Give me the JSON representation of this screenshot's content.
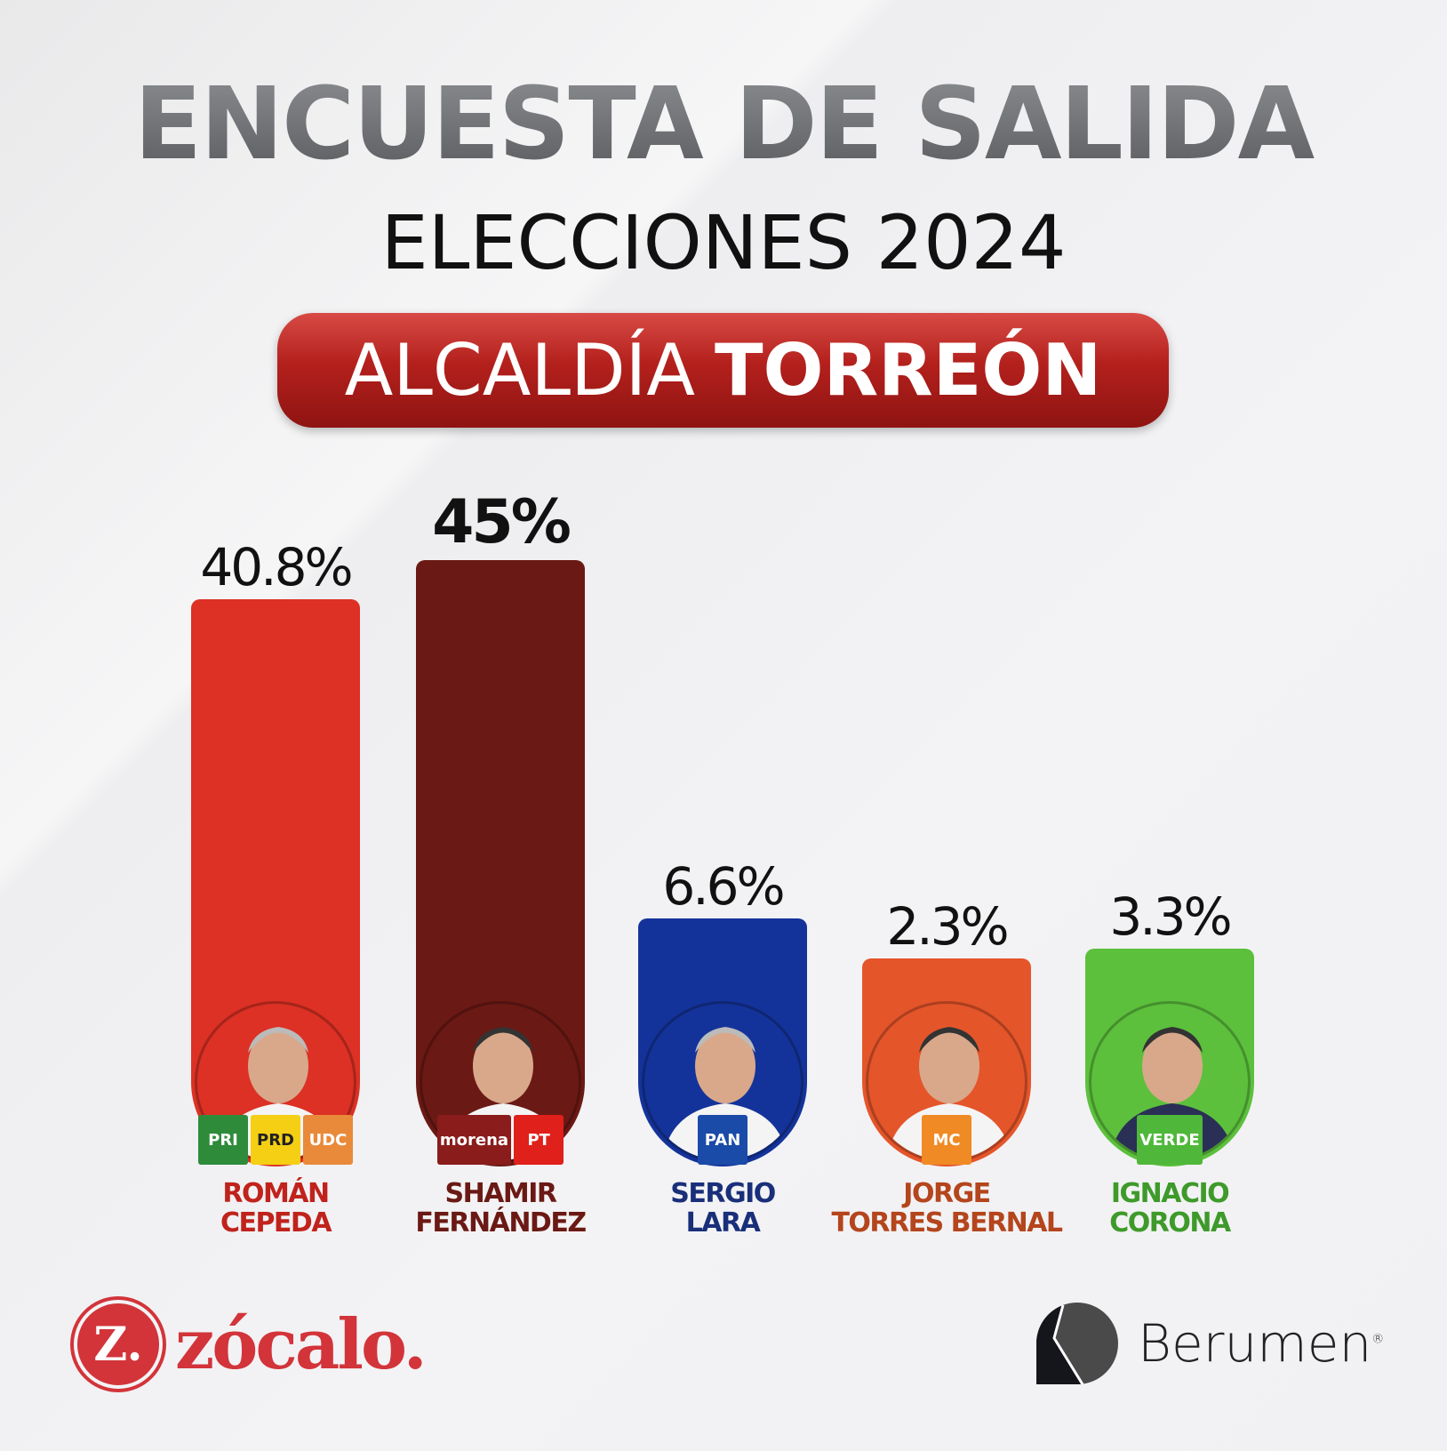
{
  "header": {
    "title": "ENCUESTA DE SALIDA",
    "subtitle": "ELECCIONES 2024",
    "region_prefix": "ALCALDÍA",
    "region_name": "TORREÓN"
  },
  "chart_data": {
    "type": "bar",
    "title": "ENCUESTA DE SALIDA - ELECCIONES 2024 - ALCALDÍA TORREÓN",
    "categories": [
      "ROMÁN CEPEDA",
      "SHAMIR FERNÁNDEZ",
      "SERGIO LARA",
      "JORGE TORRES BERNAL",
      "IGNACIO CORONA"
    ],
    "values": [
      40.8,
      45,
      6.6,
      2.3,
      3.3
    ],
    "labels": [
      "40.8%",
      "45%",
      "6.6%",
      "2.3%",
      "3.3%"
    ],
    "unit": "%",
    "xlabel": "",
    "ylabel": "",
    "candidates": [
      {
        "first": "ROMÁN",
        "last": "CEPEDA",
        "color": "#dc3124",
        "text_color": "#c0231c",
        "parties": [
          {
            "name": "PRI",
            "bg": "#2e8b3a"
          },
          {
            "name": "PRD",
            "bg": "#f5cf14"
          },
          {
            "name": "UDC",
            "bg": "#e98a3a"
          }
        ]
      },
      {
        "first": "SHAMIR",
        "last": "FERNÁNDEZ",
        "color": "#6b1914",
        "text_color": "#6b1914",
        "parties": [
          {
            "name": "morena",
            "bg": "#8a1c1c"
          },
          {
            "name": "PT",
            "bg": "#e0201a"
          }
        ]
      },
      {
        "first": "SERGIO",
        "last": "LARA",
        "color": "#14339a",
        "text_color": "#1a2f7a",
        "parties": [
          {
            "name": "PAN",
            "bg": "#1a4ba8"
          }
        ]
      },
      {
        "first": "JORGE",
        "last": "TORRES BERNAL",
        "color": "#e5552a",
        "text_color": "#b4451c",
        "parties": [
          {
            "name": "MC",
            "bg": "#f08a24"
          }
        ]
      },
      {
        "first": "IGNACIO",
        "last": "CORONA",
        "color": "#5cc03c",
        "text_color": "#3e9a2a",
        "parties": [
          {
            "name": "VERDE",
            "bg": "#4fb83a"
          }
        ]
      }
    ]
  },
  "footer": {
    "left_logo": "zócalo.",
    "left_logo_mark": "Z.",
    "right_logo": "Berumen",
    "right_logo_mark": "®"
  }
}
